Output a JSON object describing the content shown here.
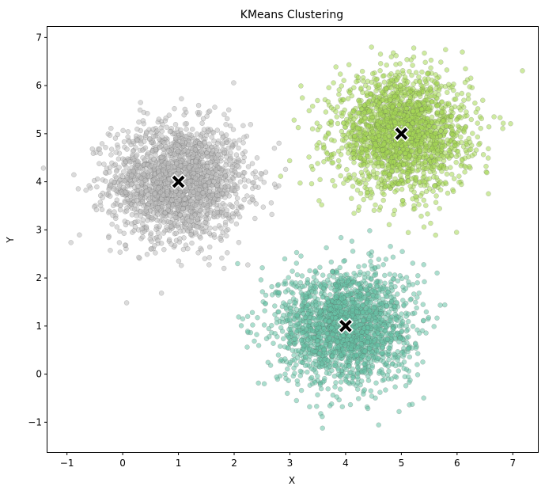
{
  "chart_data": {
    "type": "scatter",
    "title": "KMeans Clustering",
    "xlabel": "X",
    "ylabel": "Y",
    "xlim": [
      -1.35,
      7.45
    ],
    "ylim": [
      -1.62,
      7.22
    ],
    "x_ticks": [
      -1,
      0,
      1,
      2,
      3,
      4,
      5,
      6,
      7
    ],
    "y_ticks": [
      -1,
      0,
      1,
      2,
      3,
      4,
      5,
      6,
      7
    ],
    "x_tick_labels": [
      "−1",
      "0",
      "1",
      "2",
      "3",
      "4",
      "5",
      "6",
      "7"
    ],
    "y_tick_labels": [
      "−1",
      "0",
      "1",
      "2",
      "3",
      "4",
      "5",
      "6",
      "7"
    ],
    "grid": false,
    "legend": "none",
    "clusters": [
      {
        "center": [
          1.0,
          4.0
        ],
        "std": 0.6,
        "count": 2000,
        "color": "#bdbdbd"
      },
      {
        "center": [
          5.0,
          5.0
        ],
        "std": 0.6,
        "count": 2000,
        "color": "#a6d854"
      },
      {
        "center": [
          4.0,
          1.0
        ],
        "std": 0.6,
        "count": 2000,
        "color": "#66c2a5"
      }
    ],
    "centroids": [
      {
        "x": 1.0,
        "y": 4.0
      },
      {
        "x": 5.0,
        "y": 5.0
      },
      {
        "x": 4.0,
        "y": 1.0
      }
    ],
    "marker": {
      "point_opacity": 0.55,
      "edge_color": "#555555",
      "centroid_color": "#000000",
      "centroid_edge": "#ffffff"
    }
  }
}
